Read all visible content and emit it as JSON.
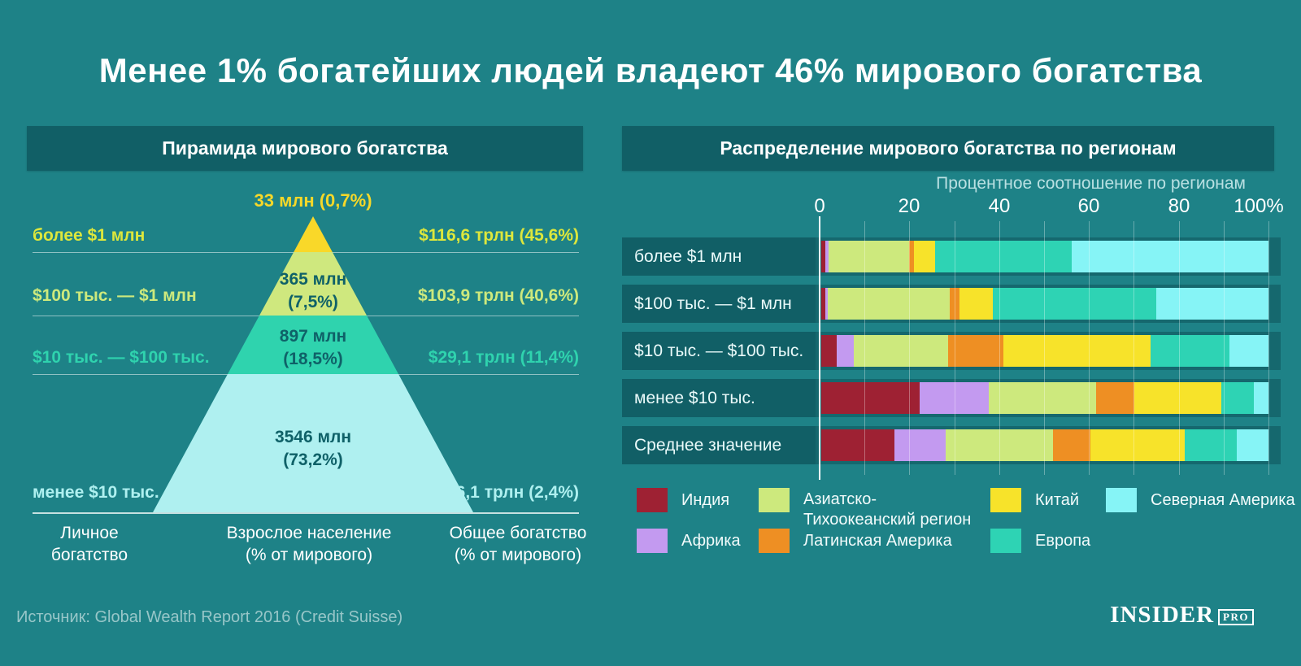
{
  "title": "Менее 1% богатейших людей владеют 46% мирового богатства",
  "left_panel": {
    "header": "Пирамида мирового богатства",
    "apex_label": "33 млн (0,7%)",
    "apex_color": "#f6d829",
    "inner_text_color": "#0f6168",
    "levels": [
      {
        "range": "более $1 млн",
        "wealth": "$116,6 трлн (45,6%)",
        "inner": "",
        "range_color": "#dde73c",
        "fill": "#f9d829"
      },
      {
        "range": "$100 тыс. — $1 млн",
        "wealth": "$103,9 трлн (40,6%)",
        "inner": "365 млн\n(7,5%)",
        "range_color": "#cde97d",
        "fill": "#cfe87e"
      },
      {
        "range": "$10 тыс. — $100 тыс.",
        "wealth": "$29,1 трлн (11,4%)",
        "inner": "897 млн\n(18,5%)",
        "range_color": "#2fd3ae",
        "fill": "#2fd3ae"
      },
      {
        "range": "менее $10 тыс.",
        "wealth": "$6,1 трлн (2,4%)",
        "inner": "3546 млн\n(73,2%)",
        "range_color": "#aff0f0",
        "fill": "#aff0f0"
      }
    ],
    "captions": [
      "Личное\nбогатство",
      "Взрослое население\n(% от мирового)",
      "Общее богатство\n(% от мирового)"
    ]
  },
  "right_panel": {
    "header": "Распределение мирового богатства по регионам"
  },
  "footer": {
    "source": "Источник: Global Wealth Report 2016 (Credit Suisse)",
    "logo_main": "INSIDER",
    "logo_pro": "PRO"
  },
  "colors": {
    "background": "#1e8287",
    "panel_box": "#115f66",
    "row_strip": "#15686e",
    "zero_line": "#ffffff"
  },
  "chart_data": [
    {
      "type": "pyramid",
      "title": "Пирамида мирового богатства",
      "levels": [
        {
          "label": "более $1 млн",
          "adults_mln": 33,
          "adults_pct": 0.7,
          "wealth_trln_usd": 116.6,
          "wealth_pct": 45.6
        },
        {
          "label": "$100 тыс. — $1 млн",
          "adults_mln": 365,
          "adults_pct": 7.5,
          "wealth_trln_usd": 103.9,
          "wealth_pct": 40.6
        },
        {
          "label": "$10 тыс. — $100 тыс.",
          "adults_mln": 897,
          "adults_pct": 18.5,
          "wealth_trln_usd": 29.1,
          "wealth_pct": 11.4
        },
        {
          "label": "менее $10 тыс.",
          "adults_mln": 3546,
          "adults_pct": 73.2,
          "wealth_trln_usd": 6.1,
          "wealth_pct": 2.4
        }
      ],
      "axis_notes": [
        "Личное богатство",
        "Взрослое население (% от мирового)",
        "Общее богатство (% от мирового)"
      ]
    },
    {
      "type": "bar",
      "stacked": true,
      "orientation": "horizontal",
      "title": "Распределение мирового богатства по регионам",
      "subtitle": "Процентное соотношение по регионам",
      "categories": [
        "более $1 млн",
        "$100 тыс. — $1 млн",
        "$10 тыс. — $100 тыс.",
        "менее $10 тыс.",
        "Среднее значение"
      ],
      "xlim": [
        0,
        100
      ],
      "x_ticks": [
        "0",
        "20",
        "40",
        "60",
        "80",
        "100%"
      ],
      "grid": true,
      "legend_position": "bottom",
      "series": [
        {
          "name": "Индия",
          "color": "#9e2133",
          "values": [
            0.9,
            0.9,
            3.5,
            22.0,
            16.3
          ]
        },
        {
          "name": "Африка",
          "color": "#c39af0",
          "values": [
            0.8,
            0.5,
            3.8,
            15.5,
            11.6
          ]
        },
        {
          "name": "Азиатско-Тихоокеанский регион",
          "color": "#cde97d",
          "values": [
            18.0,
            27.3,
            21.0,
            24.0,
            24.0
          ]
        },
        {
          "name": "Латинская Америка",
          "color": "#ee8f23",
          "values": [
            1.1,
            2.3,
            12.4,
            8.5,
            8.3
          ]
        },
        {
          "name": "Китай",
          "color": "#f7e32a",
          "values": [
            4.7,
            7.3,
            33.0,
            19.5,
            21.0
          ]
        },
        {
          "name": "Европа",
          "color": "#2ed3b4",
          "values": [
            30.5,
            36.6,
            17.6,
            7.3,
            11.8
          ]
        },
        {
          "name": "Северная Америка",
          "color": "#86f4f6",
          "values": [
            44.0,
            25.1,
            8.7,
            3.2,
            7.0
          ]
        }
      ]
    }
  ]
}
